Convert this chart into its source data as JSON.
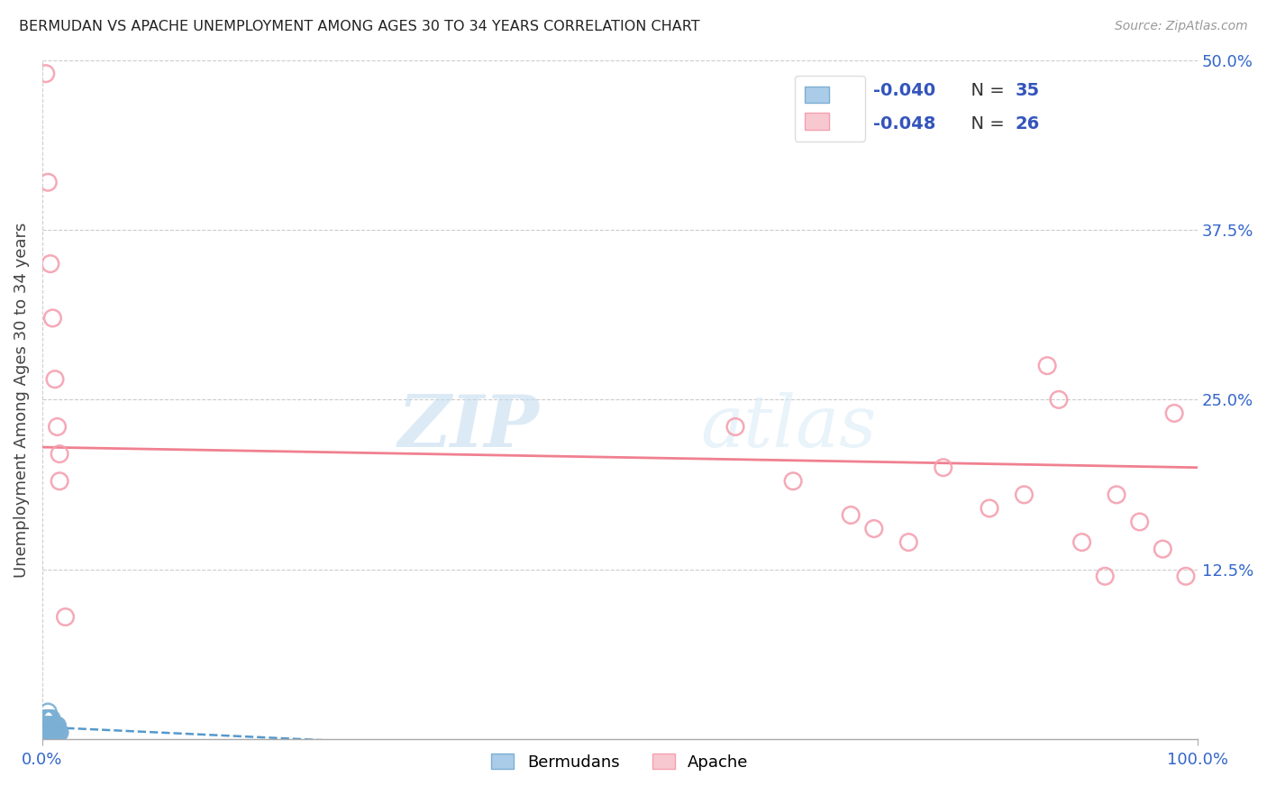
{
  "title": "BERMUDAN VS APACHE UNEMPLOYMENT AMONG AGES 30 TO 34 YEARS CORRELATION CHART",
  "source": "Source: ZipAtlas.com",
  "ylabel": "Unemployment Among Ages 30 to 34 years",
  "xlim": [
    0.0,
    1.0
  ],
  "ylim": [
    0.0,
    0.5
  ],
  "yticks_right": [
    0.0,
    0.125,
    0.25,
    0.375,
    0.5
  ],
  "yticklabels_right": [
    "",
    "12.5%",
    "25.0%",
    "37.5%",
    "50.0%"
  ],
  "grid_color": "#cccccc",
  "background_color": "#ffffff",
  "bermudans_color": "#7bafd4",
  "apache_color": "#f4a0b0",
  "bermudans_line_color": "#5599cc",
  "apache_line_color": "#f08090",
  "R_bermudans": -0.04,
  "N_bermudans": 35,
  "R_apache": -0.048,
  "N_apache": 26,
  "bermudans_x": [
    0.001,
    0.001,
    0.002,
    0.002,
    0.003,
    0.003,
    0.003,
    0.004,
    0.004,
    0.004,
    0.005,
    0.005,
    0.005,
    0.005,
    0.006,
    0.006,
    0.006,
    0.007,
    0.007,
    0.007,
    0.008,
    0.008,
    0.008,
    0.009,
    0.009,
    0.01,
    0.01,
    0.011,
    0.011,
    0.012,
    0.012,
    0.013,
    0.013,
    0.014,
    0.015
  ],
  "bermudans_y": [
    0.005,
    0.01,
    0.005,
    0.01,
    0.005,
    0.01,
    0.015,
    0.005,
    0.01,
    0.015,
    0.005,
    0.01,
    0.015,
    0.02,
    0.005,
    0.01,
    0.015,
    0.005,
    0.01,
    0.015,
    0.005,
    0.01,
    0.015,
    0.005,
    0.01,
    0.005,
    0.01,
    0.005,
    0.01,
    0.005,
    0.01,
    0.005,
    0.01,
    0.005,
    0.005
  ],
  "apache_x": [
    0.003,
    0.005,
    0.007,
    0.009,
    0.011,
    0.013,
    0.015,
    0.015,
    0.02,
    0.6,
    0.65,
    0.7,
    0.72,
    0.75,
    0.78,
    0.82,
    0.85,
    0.87,
    0.88,
    0.9,
    0.92,
    0.93,
    0.95,
    0.97,
    0.98,
    0.99
  ],
  "apache_y": [
    0.49,
    0.41,
    0.35,
    0.31,
    0.265,
    0.23,
    0.21,
    0.19,
    0.09,
    0.23,
    0.19,
    0.165,
    0.155,
    0.145,
    0.2,
    0.17,
    0.18,
    0.275,
    0.25,
    0.145,
    0.12,
    0.18,
    0.16,
    0.14,
    0.24,
    0.12
  ],
  "watermark_zip": "ZIP",
  "watermark_atlas": "atlas",
  "legend_R1": "R = -0.040",
  "legend_N1": "N = 35",
  "legend_R2": "R = -0.048",
  "legend_N2": "N = 26"
}
